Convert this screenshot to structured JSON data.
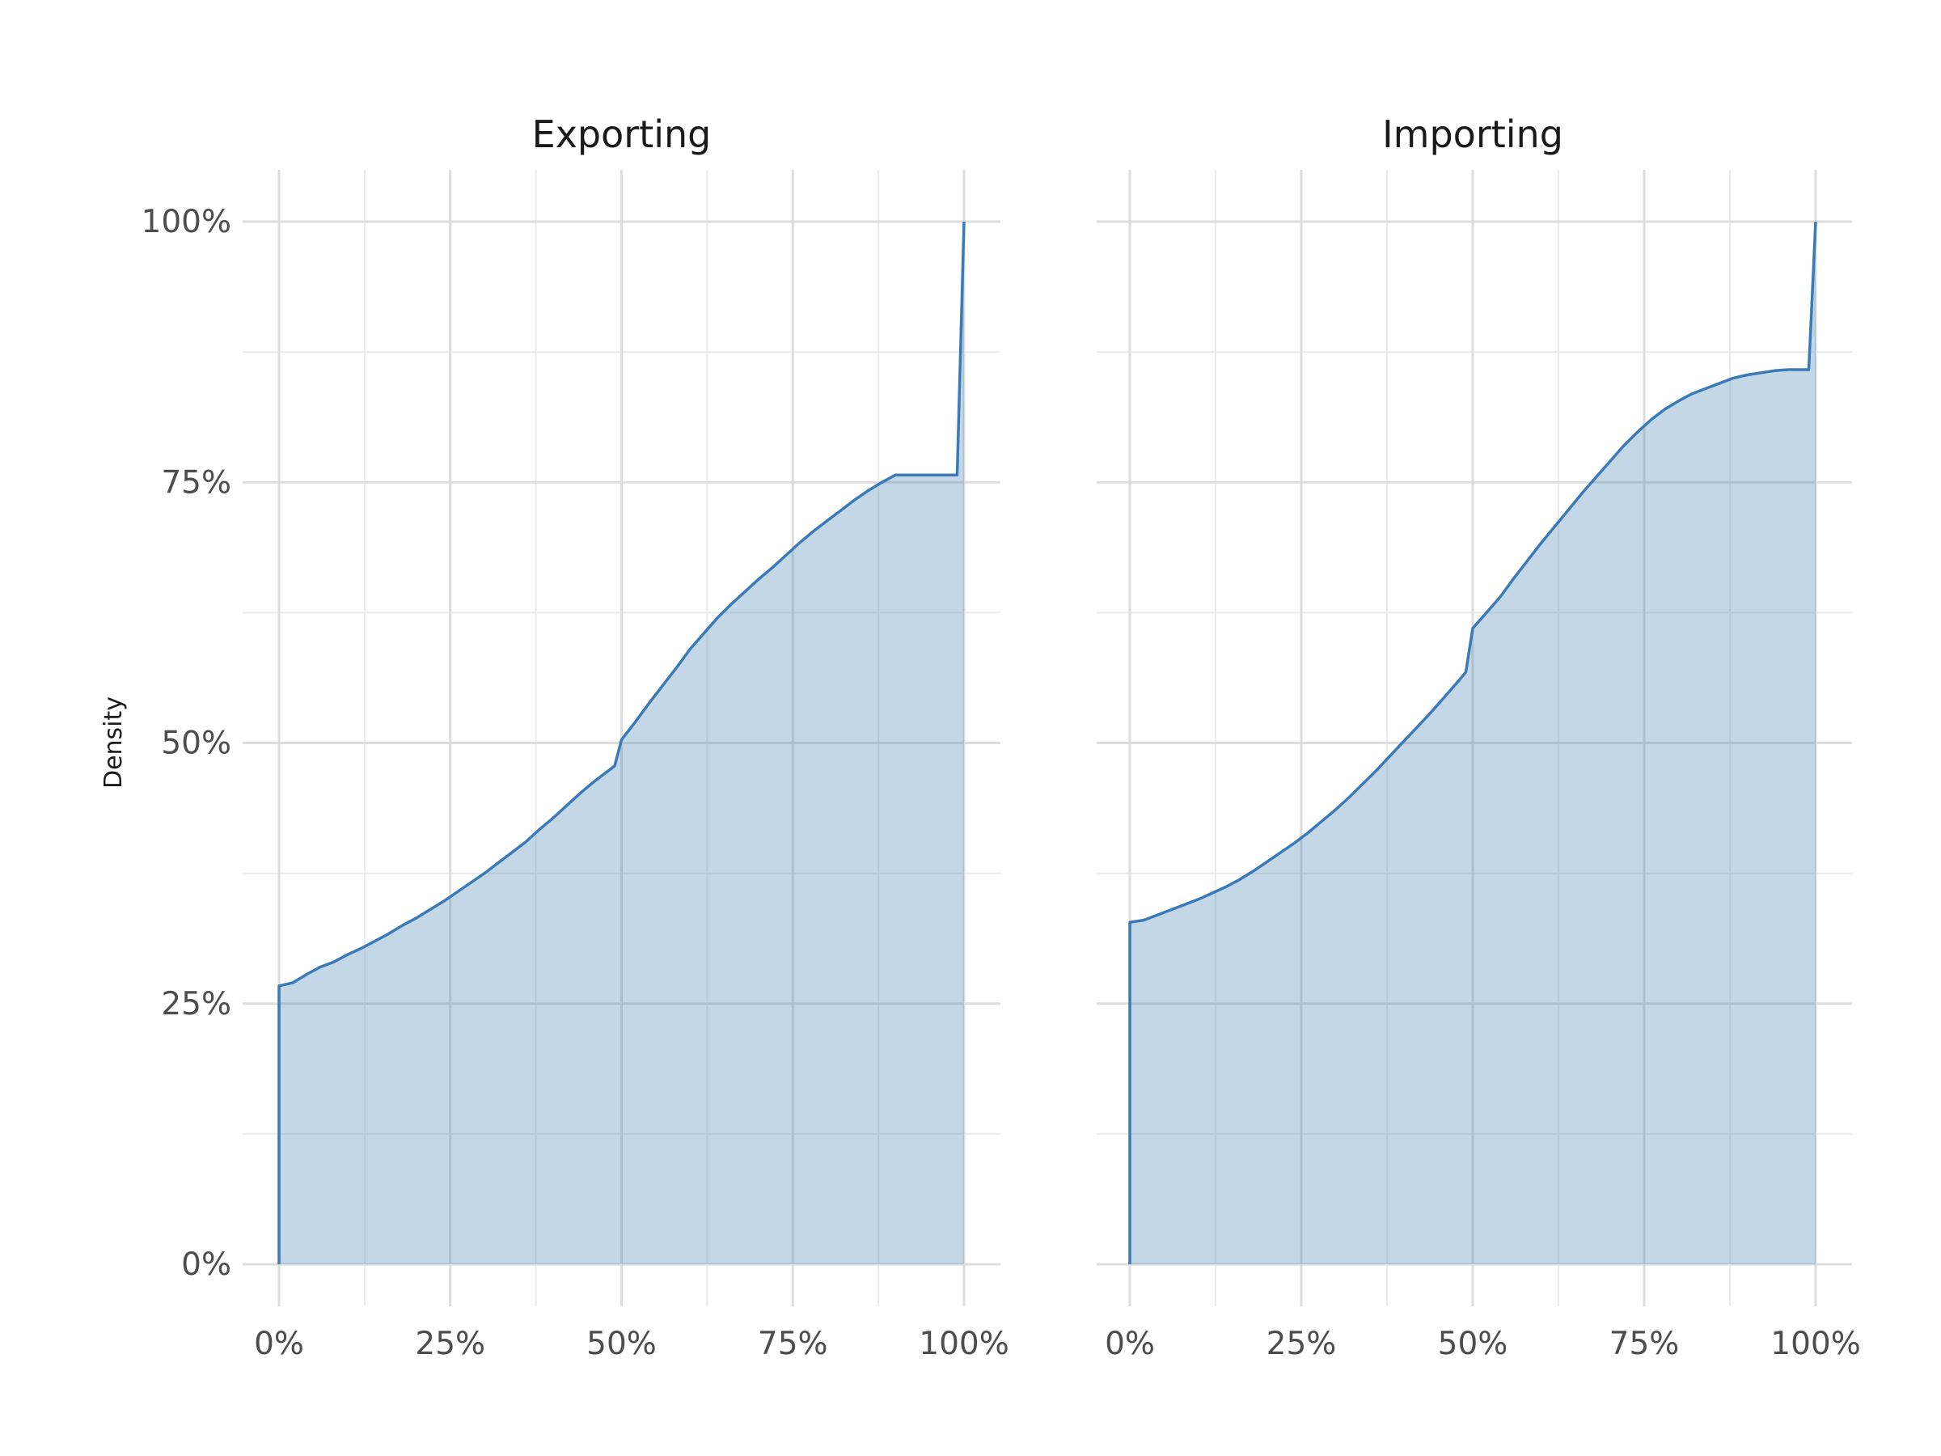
{
  "chart_data": {
    "type": "area",
    "ylabel": "Density",
    "xlabel": "",
    "y_ticks": [
      "0%",
      "25%",
      "50%",
      "75%",
      "100%"
    ],
    "x_ticks": [
      "0%",
      "25%",
      "50%",
      "75%",
      "100%"
    ],
    "xlim": [
      0,
      1
    ],
    "ylim": [
      0,
      1
    ],
    "grid": true,
    "fill_color": "#4682b4",
    "line_color": "#3a7ab8",
    "panels": [
      {
        "title": "Exporting",
        "x": [
          0,
          0.02,
          0.04,
          0.06,
          0.08,
          0.1,
          0.12,
          0.14,
          0.16,
          0.18,
          0.2,
          0.22,
          0.24,
          0.26,
          0.28,
          0.3,
          0.32,
          0.34,
          0.36,
          0.38,
          0.4,
          0.42,
          0.44,
          0.46,
          0.48,
          0.49,
          0.5,
          0.52,
          0.54,
          0.56,
          0.58,
          0.6,
          0.62,
          0.64,
          0.66,
          0.68,
          0.7,
          0.72,
          0.74,
          0.76,
          0.78,
          0.8,
          0.82,
          0.84,
          0.86,
          0.88,
          0.9,
          0.92,
          0.94,
          0.96,
          0.98,
          0.99,
          1.0
        ],
        "y": [
          0.267,
          0.27,
          0.278,
          0.285,
          0.29,
          0.297,
          0.303,
          0.31,
          0.317,
          0.325,
          0.332,
          0.34,
          0.348,
          0.357,
          0.366,
          0.375,
          0.385,
          0.395,
          0.405,
          0.417,
          0.428,
          0.44,
          0.452,
          0.463,
          0.473,
          0.478,
          0.503,
          0.52,
          0.538,
          0.555,
          0.572,
          0.59,
          0.605,
          0.62,
          0.633,
          0.645,
          0.657,
          0.668,
          0.68,
          0.692,
          0.703,
          0.713,
          0.723,
          0.733,
          0.742,
          0.75,
          0.757,
          0.757,
          0.757,
          0.757,
          0.757,
          0.757,
          1.0
        ]
      },
      {
        "title": "Importing",
        "x": [
          0,
          0.02,
          0.04,
          0.06,
          0.08,
          0.1,
          0.12,
          0.14,
          0.16,
          0.18,
          0.2,
          0.22,
          0.24,
          0.26,
          0.28,
          0.3,
          0.32,
          0.34,
          0.36,
          0.38,
          0.4,
          0.42,
          0.44,
          0.46,
          0.48,
          0.49,
          0.5,
          0.52,
          0.54,
          0.56,
          0.58,
          0.6,
          0.62,
          0.64,
          0.66,
          0.68,
          0.7,
          0.72,
          0.74,
          0.76,
          0.78,
          0.8,
          0.82,
          0.84,
          0.86,
          0.88,
          0.9,
          0.92,
          0.94,
          0.96,
          0.98,
          0.99,
          1.0
        ],
        "y": [
          0.328,
          0.33,
          0.335,
          0.34,
          0.345,
          0.35,
          0.356,
          0.362,
          0.369,
          0.377,
          0.386,
          0.395,
          0.404,
          0.414,
          0.425,
          0.436,
          0.448,
          0.461,
          0.474,
          0.488,
          0.502,
          0.516,
          0.53,
          0.545,
          0.56,
          0.568,
          0.61,
          0.625,
          0.64,
          0.658,
          0.675,
          0.692,
          0.708,
          0.724,
          0.74,
          0.755,
          0.77,
          0.785,
          0.798,
          0.81,
          0.82,
          0.828,
          0.835,
          0.84,
          0.845,
          0.85,
          0.853,
          0.855,
          0.857,
          0.858,
          0.858,
          0.858,
          1.0
        ]
      }
    ]
  }
}
